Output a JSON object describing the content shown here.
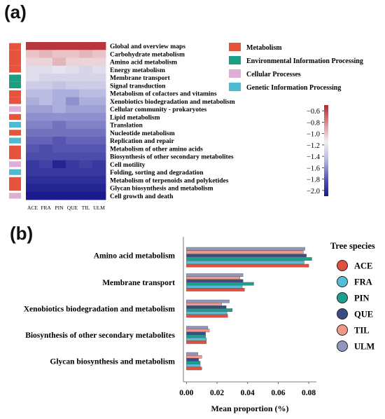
{
  "panel_a_label": "(a)",
  "panel_b_label": "(b)",
  "chart_data": [
    {
      "type": "heatmap",
      "columns": [
        "ACE",
        "FRA",
        "PIN",
        "QUE",
        "TIL",
        "ULM"
      ],
      "rows": [
        "Global and overview maps",
        "Carbohydrate metabolism",
        "Amino acid metabolism",
        "Energy metabolism",
        "Membrane transport",
        "Signal transduction",
        "Metabolism of cofactors and vitamins",
        "Xenobiotics biodegradation and metabolism",
        "Cellular community - prokaryotes",
        "Lipid metabolism",
        "Translation",
        "Nucleotide metabolism",
        "Replication and repair",
        "Metabolism of other amino acids",
        "Biosynthesis of other secondary metabolites",
        "Cell motility",
        "Folding, sorting and degradation",
        "Metabolism of terpenoids and polyketides",
        "Glycan biosynthesis and metabolism",
        "Cell growth and death"
      ],
      "values": [
        [
          -0.55,
          -0.55,
          -0.55,
          -0.55,
          -0.55,
          -0.55
        ],
        [
          -1.0,
          -0.95,
          -1.0,
          -1.0,
          -0.95,
          -1.0
        ],
        [
          -1.05,
          -1.05,
          -0.95,
          -1.05,
          -1.05,
          -1.05
        ],
        [
          -1.25,
          -1.25,
          -1.2,
          -1.25,
          -1.3,
          -1.25
        ],
        [
          -1.25,
          -1.3,
          -1.3,
          -1.3,
          -1.3,
          -1.3
        ],
        [
          -1.35,
          -1.35,
          -1.4,
          -1.35,
          -1.35,
          -1.35
        ],
        [
          -1.45,
          -1.45,
          -1.5,
          -1.5,
          -1.45,
          -1.45
        ],
        [
          -1.5,
          -1.45,
          -1.5,
          -1.6,
          -1.5,
          -1.5
        ],
        [
          -1.55,
          -1.55,
          -1.5,
          -1.55,
          -1.55,
          -1.55
        ],
        [
          -1.6,
          -1.6,
          -1.6,
          -1.6,
          -1.6,
          -1.6
        ],
        [
          -1.65,
          -1.65,
          -1.7,
          -1.65,
          -1.65,
          -1.65
        ],
        [
          -1.7,
          -1.7,
          -1.7,
          -1.7,
          -1.7,
          -1.7
        ],
        [
          -1.75,
          -1.75,
          -1.8,
          -1.75,
          -1.75,
          -1.75
        ],
        [
          -1.8,
          -1.85,
          -1.8,
          -1.8,
          -1.8,
          -1.8
        ],
        [
          -1.85,
          -1.85,
          -1.85,
          -1.85,
          -1.85,
          -1.85
        ],
        [
          -1.95,
          -1.9,
          -2.05,
          -1.95,
          -1.9,
          -1.95
        ],
        [
          -1.95,
          -1.95,
          -1.95,
          -1.95,
          -1.95,
          -1.95
        ],
        [
          -2.0,
          -2.0,
          -2.0,
          -2.0,
          -2.0,
          -2.0
        ],
        [
          -2.05,
          -2.05,
          -2.05,
          -2.05,
          -2.05,
          -2.05
        ],
        [
          -2.1,
          -2.1,
          -2.1,
          -2.1,
          -2.1,
          -2.1
        ]
      ],
      "row_categories": [
        "Metabolism",
        "Metabolism",
        "Metabolism",
        "Metabolism",
        "Environmental Information Processing",
        "Environmental Information Processing",
        "Metabolism",
        "Metabolism",
        "Cellular Processes",
        "Metabolism",
        "Genetic Information Processing",
        "Metabolism",
        "Genetic Information Processing",
        "Metabolism",
        "Metabolism",
        "Cellular Processes",
        "Genetic Information Processing",
        "Metabolism",
        "Metabolism",
        "Cellular Processes"
      ],
      "category_legend": [
        {
          "name": "Metabolism",
          "color": "#e8533c"
        },
        {
          "name": "Environmental Information Processing",
          "color": "#1a9e84"
        },
        {
          "name": "Cellular Processes",
          "color": "#dcaed8"
        },
        {
          "name": "Genetic Information Processing",
          "color": "#4cbcd3"
        }
      ],
      "colorbar": {
        "ticks": [
          -0.6,
          -0.8,
          -1.0,
          -1.2,
          -1.4,
          -1.6,
          -1.8,
          -2.0
        ],
        "tick_labels": [
          "−0.6",
          "−0.8",
          "−1.0",
          "−1.2",
          "−1.4",
          "−1.6",
          "−1.8",
          "−2.0"
        ],
        "range": [
          -2.1,
          -0.5
        ],
        "colors": [
          "#1a1a8c",
          "#5a5ab4",
          "#b8bae0",
          "#f3eef2",
          "#d98e93",
          "#b2272c"
        ]
      }
    },
    {
      "type": "bar",
      "orientation": "horizontal",
      "categories": [
        "Amino acid metabolism",
        "Membrane transport",
        "Xenobiotics biodegradation and metabolism",
        "Biosynthesis of other secondary metabolites",
        "Glycan biosynthesis and metabolism"
      ],
      "series": [
        {
          "name": "ULM",
          "color": "#8f97bd",
          "values": [
            0.0775,
            0.037,
            0.028,
            0.014,
            0.0075
          ]
        },
        {
          "name": "TIL",
          "color": "#f0998a",
          "values": [
            0.0765,
            0.035,
            0.023,
            0.015,
            0.01
          ]
        },
        {
          "name": "QUE",
          "color": "#3a4c86",
          "values": [
            0.0785,
            0.037,
            0.026,
            0.0125,
            0.008
          ]
        },
        {
          "name": "PIN",
          "color": "#1c9f8d",
          "values": [
            0.082,
            0.044,
            0.03,
            0.0125,
            0.009
          ]
        },
        {
          "name": "FRA",
          "color": "#56bdd6",
          "values": [
            0.077,
            0.0365,
            0.0265,
            0.013,
            0.009
          ]
        },
        {
          "name": "ACE",
          "color": "#e0503e",
          "values": [
            0.08,
            0.038,
            0.027,
            0.013,
            0.01
          ]
        }
      ],
      "xlabel": "Mean proportion (%)",
      "xlim": [
        -0.002,
        0.085
      ],
      "xticks": [
        0.0,
        0.02,
        0.04,
        0.06,
        0.08
      ],
      "xtick_labels": [
        "0.00",
        "0.02",
        "0.04",
        "0.06",
        "0.08"
      ],
      "legend": {
        "title": "Tree species",
        "placement": "right",
        "entries": [
          {
            "name": "ACE",
            "color": "#e0503e"
          },
          {
            "name": "FRA",
            "color": "#56bdd6"
          },
          {
            "name": "PIN",
            "color": "#1c9f8d"
          },
          {
            "name": "QUE",
            "color": "#3a4c86"
          },
          {
            "name": "TIL",
            "color": "#f0998a"
          },
          {
            "name": "ULM",
            "color": "#8f97bd"
          }
        ]
      }
    }
  ]
}
